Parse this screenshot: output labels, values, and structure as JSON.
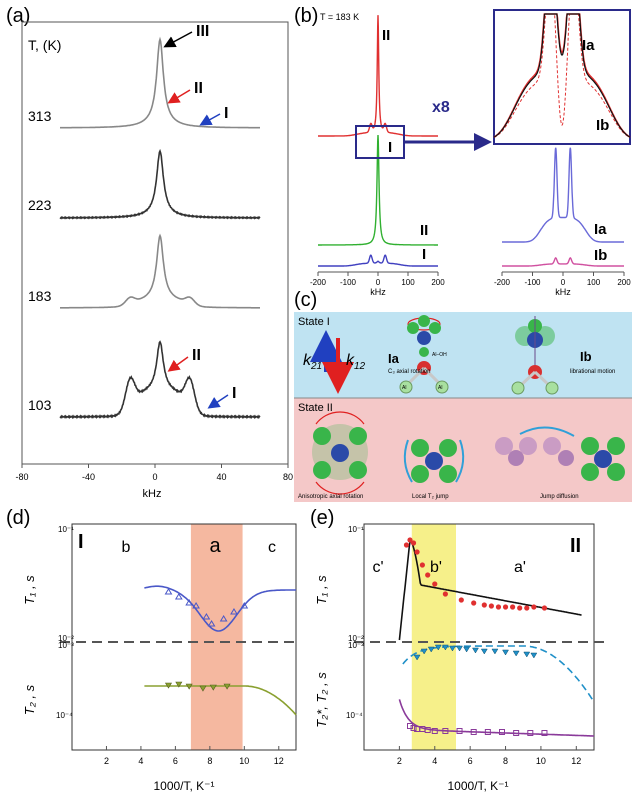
{
  "panel_a": {
    "label": "(a)",
    "t_header": "T, (K)",
    "temps": [
      "313",
      "223",
      "183",
      "103"
    ],
    "markers": {
      "I": "I",
      "II": "II",
      "III": "III"
    },
    "x_ticks": [
      "-80",
      "-40",
      "0",
      "40",
      "80"
    ],
    "xlabel": "kHz"
  },
  "panel_b": {
    "label": "(b)",
    "temp": "T = 183 K",
    "zoom": "x8",
    "labels": {
      "II": "II",
      "I": "I",
      "Ia": "Ia",
      "Ib": "Ib"
    },
    "x_ticks": [
      "-200",
      "-100",
      "0",
      "100",
      "200"
    ],
    "xlabel": "kHz"
  },
  "panel_c": {
    "label": "(c)",
    "state1": "State I",
    "state2": "State II",
    "k21": "k",
    "k21_sub": "21",
    "k12": "k",
    "k12_sub": "12",
    "ia": "Ia",
    "ia_caption": "C₃ axial rotation",
    "oh": "Al–OH",
    "al": "Al",
    "ib": "Ib",
    "ib_caption": "librational motion",
    "cap1": "Anisotropic axial rotation",
    "cap2": "Local T₂ jump",
    "cap3": "Jump diffusion"
  },
  "panel_d": {
    "label": "(d)",
    "roman": "I",
    "regions": [
      "b",
      "a",
      "c"
    ],
    "y_top": "T₁ , s",
    "y_bot": "T₂ , s",
    "yticks_top": [
      "10⁻¹",
      "10⁻²"
    ],
    "yticks_bot": [
      "10⁻³",
      "10⁻⁴"
    ],
    "x_ticks": [
      "2",
      "4",
      "6",
      "8",
      "10",
      "12"
    ],
    "xlabel": "1000/T, K⁻¹",
    "colors": {
      "band": "#f5b8a0",
      "t1": "#4a58c8",
      "t2": "#8aa030"
    }
  },
  "panel_e": {
    "label": "(e)",
    "roman": "II",
    "regions": [
      "c'",
      "b'",
      "a'"
    ],
    "y_top": "T₁ , s",
    "y_bot": "T₂*, T₂ , s",
    "yticks_top": [
      "10⁻¹",
      "10⁻²"
    ],
    "yticks_bot": [
      "10⁻³",
      "10⁻⁴"
    ],
    "x_ticks": [
      "2",
      "4",
      "6",
      "8",
      "10",
      "12"
    ],
    "xlabel": "1000/T, K⁻¹",
    "colors": {
      "band": "#f6f08a",
      "t1": "#e03030",
      "t2": "#2090c8",
      "t2star": "#8a3a9a"
    }
  }
}
